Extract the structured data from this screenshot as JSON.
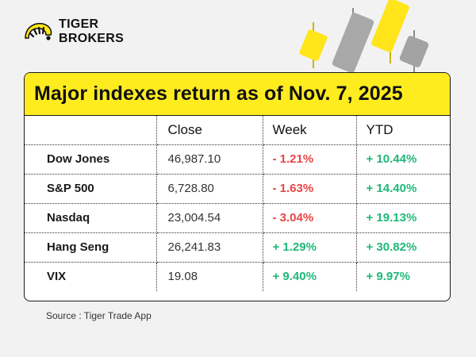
{
  "brand": {
    "line1": "TIGER",
    "line2": "BROKERS",
    "accent": "#ffec1f",
    "gray": "#9e9e9e"
  },
  "title": "Major indexes return as of Nov. 7, 2025",
  "columns": {
    "name": "",
    "close": "Close",
    "week": "Week",
    "ytd": "YTD"
  },
  "rows": [
    {
      "name": "Dow Jones",
      "close": "46,987.10",
      "week": "- 1.21%",
      "week_dir": "neg",
      "ytd": "+ 10.44%",
      "ytd_dir": "pos"
    },
    {
      "name": "S&P 500",
      "close": "6,728.80",
      "week": "- 1.63%",
      "week_dir": "neg",
      "ytd": "+ 14.40%",
      "ytd_dir": "pos"
    },
    {
      "name": "Nasdaq",
      "close": "23,004.54",
      "week": "- 3.04%",
      "week_dir": "neg",
      "ytd": "+ 19.13%",
      "ytd_dir": "pos"
    },
    {
      "name": "Hang Seng",
      "close": "26,241.83",
      "week": "+ 1.29%",
      "week_dir": "pos",
      "ytd": "+ 30.82%",
      "ytd_dir": "pos"
    },
    {
      "name": "VIX",
      "close": "19.08",
      "week": "+ 9.40%",
      "week_dir": "pos",
      "ytd": "+ 9.97%",
      "ytd_dir": "pos"
    }
  ],
  "source": "Source : Tiger Trade App",
  "colors": {
    "negative": "#e84545",
    "positive": "#1fb87a"
  }
}
